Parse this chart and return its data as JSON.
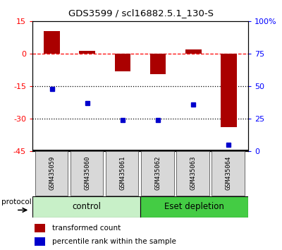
{
  "title": "GDS3599 / scl16882.5.1_130-S",
  "samples": [
    "GSM435059",
    "GSM435060",
    "GSM435061",
    "GSM435062",
    "GSM435063",
    "GSM435064"
  ],
  "transformed_count": [
    10.5,
    1.5,
    -8.0,
    -9.5,
    2.0,
    -34.0
  ],
  "percentile_rank": [
    48,
    37,
    24,
    24,
    36,
    5
  ],
  "ylim_left": [
    -45,
    15
  ],
  "ylim_right": [
    0,
    100
  ],
  "yticks_left": [
    -45,
    -30,
    -15,
    0,
    15
  ],
  "yticks_right": [
    0,
    25,
    50,
    75,
    100
  ],
  "ytick_labels_right": [
    "0",
    "25",
    "50",
    "75",
    "100%"
  ],
  "bar_color": "#AA0000",
  "dot_color": "#0000CC",
  "control_color": "#C8F0C8",
  "eset_color": "#44CC44",
  "protocol_label": "protocol",
  "legend_bar_label": "transformed count",
  "legend_dot_label": "percentile rank within the sample",
  "n_control": 3,
  "n_eset": 3,
  "control_label": "control",
  "eset_label": "Eset depletion"
}
